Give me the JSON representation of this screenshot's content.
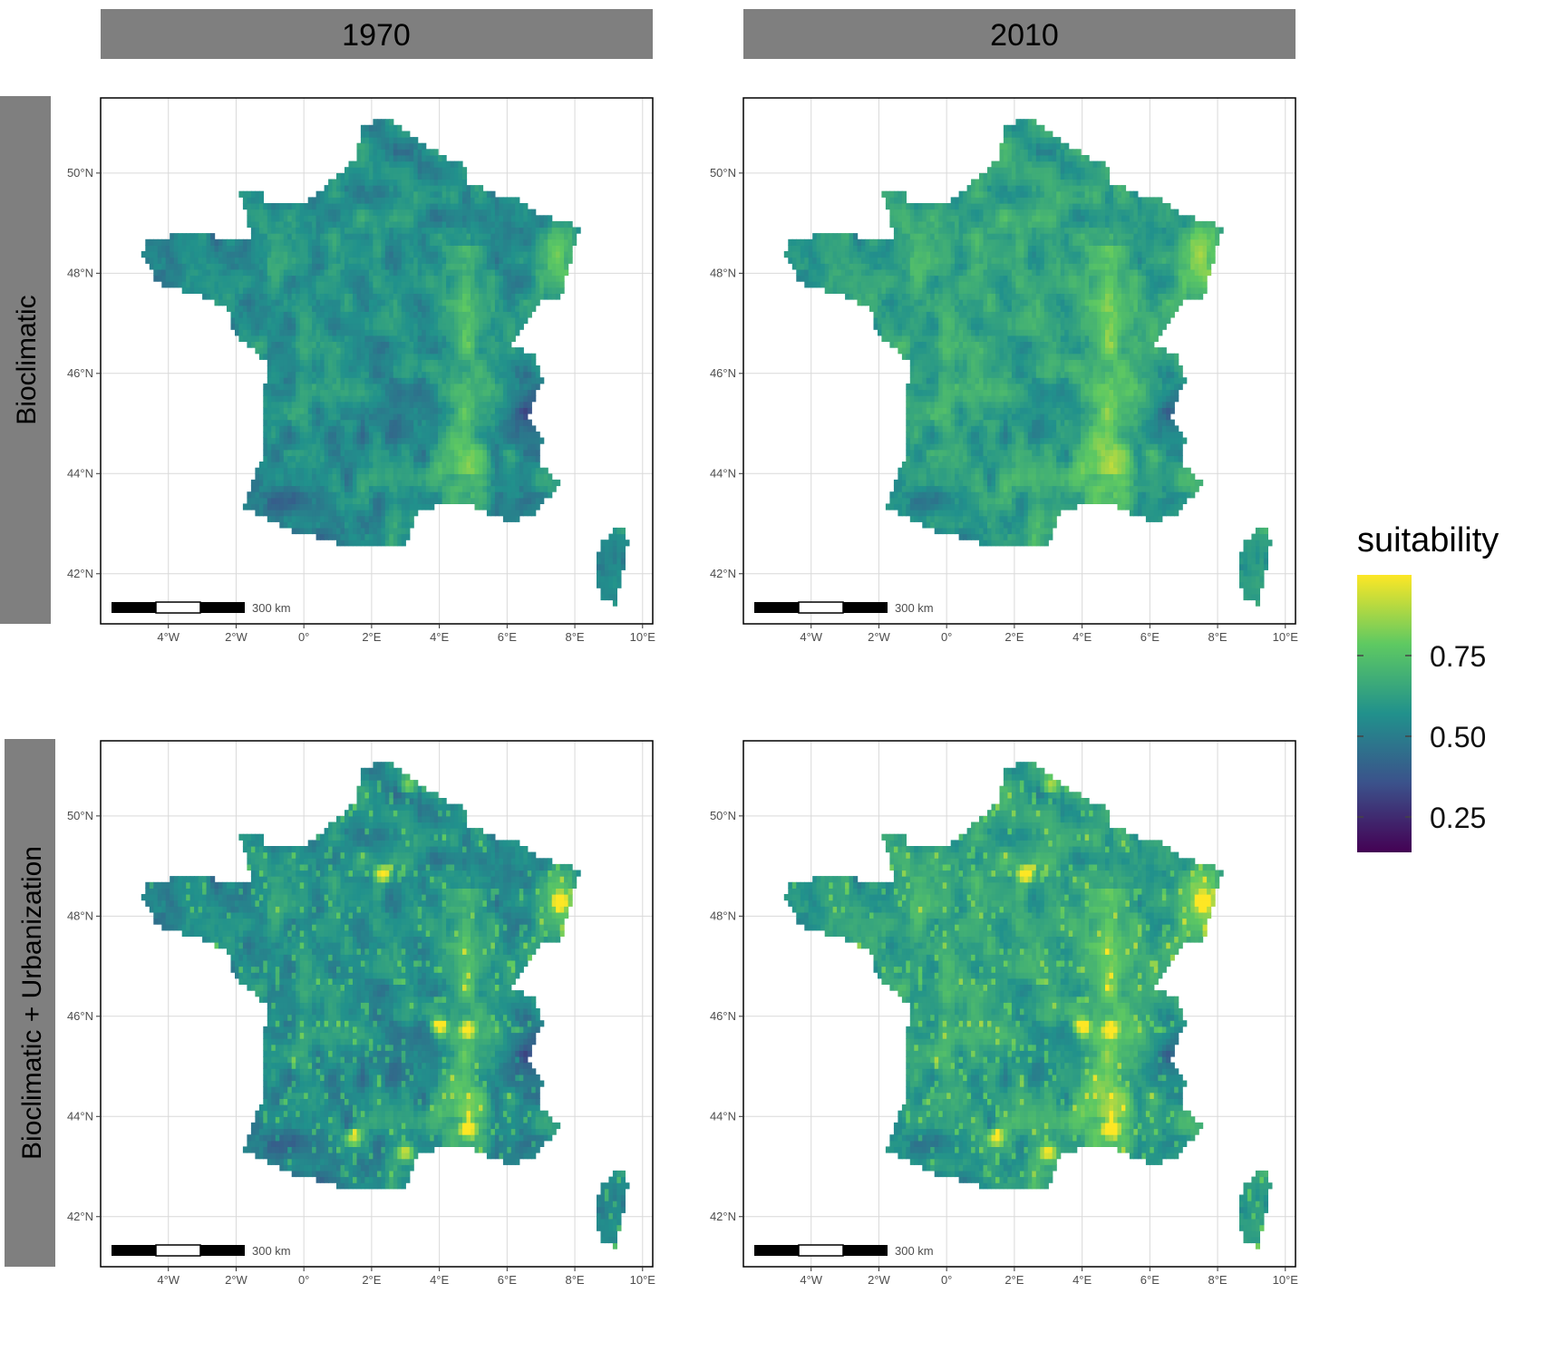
{
  "columns": [
    "1970",
    "2010"
  ],
  "rows": [
    "Bioclimatic",
    "Bioclimatic + Urbanization"
  ],
  "x_ticks": [
    "4°W",
    "2°W",
    "0°",
    "2°E",
    "4°E",
    "6°E",
    "8°E",
    "10°E"
  ],
  "y_ticks": [
    "42°N",
    "44°N",
    "46°N",
    "48°N",
    "50°N"
  ],
  "scalebar_label": "300 km",
  "legend": {
    "title": "suitability",
    "ticks": [
      "0.75",
      "0.50",
      "0.25"
    ],
    "colors": [
      "#440154",
      "#3b528b",
      "#21918c",
      "#5ec962",
      "#fde725"
    ]
  },
  "colors": {
    "strip_bg": "#7f7f7f",
    "grid": "#d9d9d9",
    "panel_border": "#000000"
  },
  "chart_data": {
    "type": "heatmap",
    "subject": "habitat suitability over France",
    "x_range": [
      -6,
      10.3
    ],
    "y_range": [
      41,
      51.5
    ],
    "x_tick_values": [
      -4,
      -2,
      0,
      2,
      4,
      6,
      8,
      10
    ],
    "y_tick_values": [
      42,
      44,
      46,
      48,
      50
    ],
    "value_range": [
      0,
      1
    ],
    "panels": [
      {
        "column": "1970",
        "row": "Bioclimatic",
        "pattern": "bioclimatic"
      },
      {
        "column": "2010",
        "row": "Bioclimatic",
        "pattern": "bioclimatic"
      },
      {
        "column": "1970",
        "row": "Bioclimatic + Urbanization",
        "pattern": "urban"
      },
      {
        "column": "2010",
        "row": "Bioclimatic + Urbanization",
        "pattern": "urban"
      }
    ],
    "hotspots": [
      {
        "lon": 2.35,
        "lat": 48.85,
        "value": 0.95
      },
      {
        "lon": 7.6,
        "lat": 48.3,
        "value": 0.95
      },
      {
        "lon": 4.85,
        "lat": 43.75,
        "value": 0.9
      },
      {
        "lon": 4.0,
        "lat": 45.8,
        "value": 0.85
      },
      {
        "lon": 3.0,
        "lat": 43.3,
        "value": 0.85
      },
      {
        "lon": 1.45,
        "lat": 43.6,
        "value": 0.8
      },
      {
        "lon": 4.85,
        "lat": 45.75,
        "value": 0.8
      },
      {
        "lon": 3.1,
        "lat": 50.6,
        "value": 0.75
      }
    ]
  }
}
